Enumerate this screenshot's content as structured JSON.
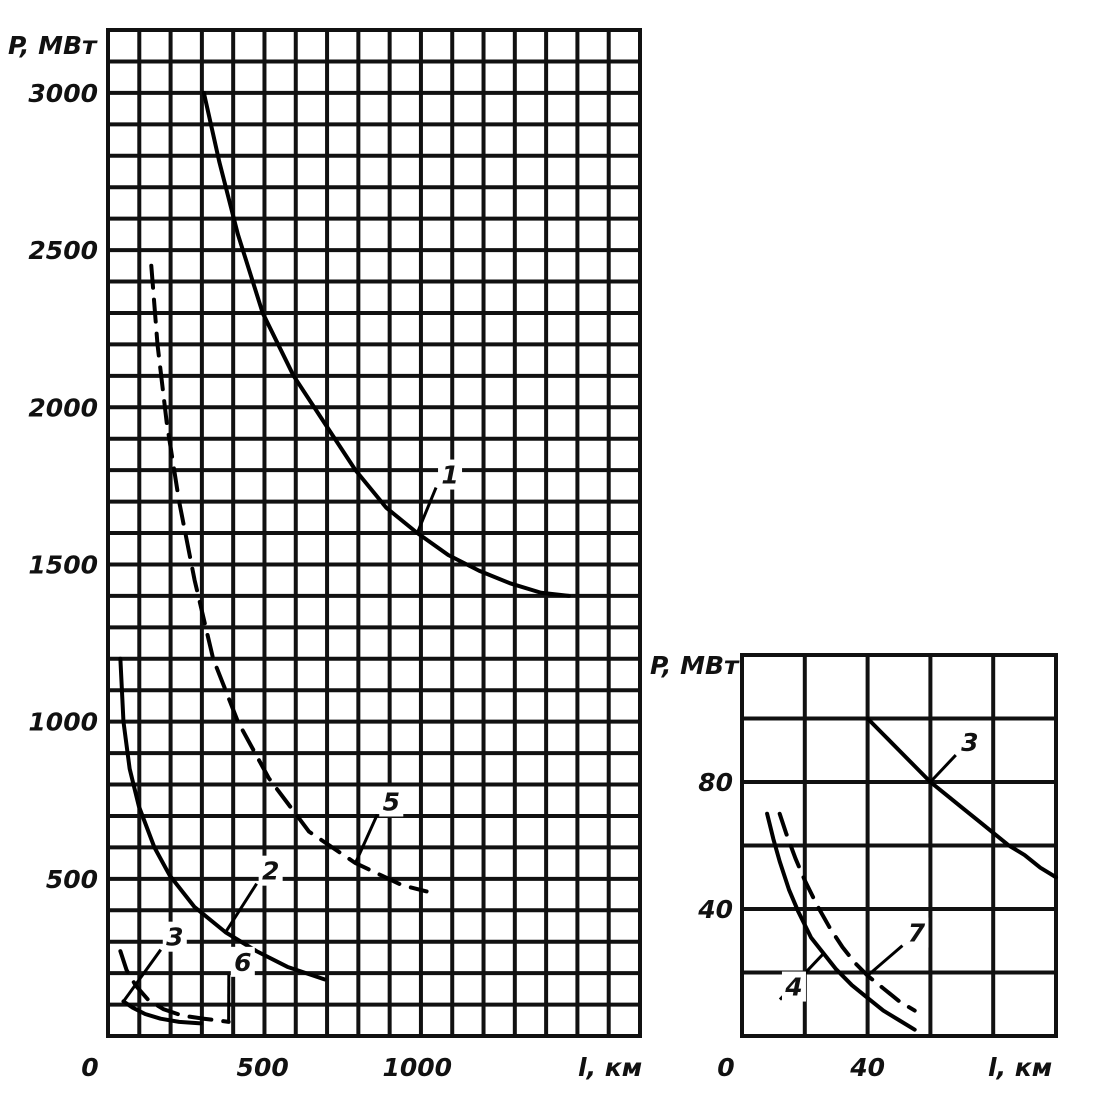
{
  "chart_data": [
    {
      "type": "line",
      "ylabel": "P, МВт",
      "xlabel": "l, км",
      "origin_label": "0",
      "xlim": [
        0,
        1720
      ],
      "ylim": [
        0,
        3200
      ],
      "x_ticks": [
        {
          "value": 500,
          "label": "500"
        },
        {
          "value": 1000,
          "label": "1000"
        }
      ],
      "y_ticks": [
        {
          "value": 500,
          "label": "500"
        },
        {
          "value": 1000,
          "label": "1000"
        },
        {
          "value": 1500,
          "label": "1500"
        },
        {
          "value": 2000,
          "label": "2000"
        },
        {
          "value": 2500,
          "label": "2500"
        },
        {
          "value": 3000,
          "label": "3000"
        }
      ],
      "grid": true,
      "series": [
        {
          "name": "1",
          "style": "solid",
          "x": [
            310,
            360,
            420,
            500,
            600,
            700,
            800,
            900,
            1000,
            1100,
            1200,
            1300,
            1400,
            1490
          ],
          "y": [
            3000,
            2780,
            2550,
            2300,
            2100,
            1950,
            1800,
            1680,
            1600,
            1530,
            1480,
            1440,
            1410,
            1400
          ],
          "label_at": [
            1080,
            1770
          ]
        },
        {
          "name": "2",
          "style": "solid",
          "x": [
            40,
            50,
            70,
            100,
            150,
            200,
            280,
            380,
            480,
            580,
            700
          ],
          "y": [
            1200,
            1000,
            850,
            730,
            600,
            510,
            410,
            330,
            270,
            220,
            180
          ],
          "label_at": [
            500,
            510
          ]
        },
        {
          "name": "3",
          "style": "solid",
          "x": [
            50,
            80,
            120,
            170,
            230,
            300
          ],
          "y": [
            110,
            90,
            70,
            55,
            45,
            40
          ],
          "label_at": [
            190,
            300
          ]
        },
        {
          "name": "5",
          "style": "dashed",
          "x": [
            140,
            160,
            190,
            230,
            280,
            340,
            420,
            520,
            650,
            800,
            950,
            1030
          ],
          "y": [
            2450,
            2200,
            1950,
            1700,
            1450,
            1200,
            1000,
            820,
            650,
            550,
            480,
            460
          ],
          "label_at": [
            890,
            730
          ]
        },
        {
          "name": "6",
          "style": "dashed",
          "x": [
            40,
            60,
            90,
            130,
            180,
            240,
            310,
            390
          ],
          "y": [
            270,
            210,
            160,
            115,
            85,
            65,
            55,
            45
          ],
          "label_at": [
            410,
            220
          ]
        }
      ]
    },
    {
      "type": "line",
      "ylabel": "P, МВт",
      "xlabel": "l, км",
      "origin_label": "0",
      "xlim": [
        0,
        100
      ],
      "ylim": [
        0,
        120
      ],
      "x_ticks": [
        {
          "value": 40,
          "label": "40"
        }
      ],
      "y_ticks": [
        {
          "value": 40,
          "label": "40"
        },
        {
          "value": 80,
          "label": "80"
        }
      ],
      "grid": true,
      "series": [
        {
          "name": "3",
          "style": "solid",
          "x": [
            40,
            45,
            50,
            55,
            60,
            65,
            70,
            75,
            80,
            85,
            90,
            95,
            100
          ],
          "y": [
            100,
            95,
            90,
            85,
            80,
            76,
            72,
            68,
            64,
            60,
            57,
            53,
            50
          ],
          "label_at": [
            70,
            91
          ]
        },
        {
          "name": "4",
          "style": "solid",
          "x": [
            8,
            10,
            12,
            15,
            18,
            22,
            26,
            30,
            35,
            40,
            45,
            50,
            55
          ],
          "y": [
            70,
            62,
            55,
            46,
            39,
            31,
            26,
            21,
            16,
            12,
            8,
            5,
            2
          ],
          "label_at": [
            14,
            14
          ]
        },
        {
          "name": "7",
          "style": "dashed",
          "x": [
            12,
            14,
            17,
            20,
            24,
            28,
            32,
            36,
            40,
            45,
            50,
            55
          ],
          "y": [
            70,
            64,
            56,
            49,
            41,
            34,
            28,
            23,
            19,
            15,
            11,
            8
          ],
          "label_at": [
            53,
            31
          ]
        }
      ]
    }
  ]
}
